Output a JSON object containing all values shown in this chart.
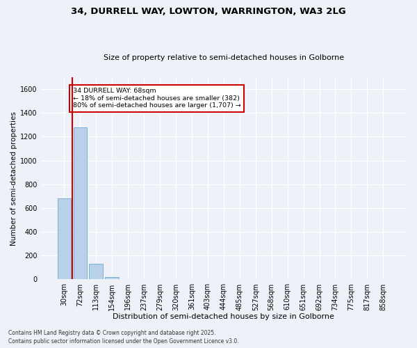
{
  "title1": "34, DURRELL WAY, LOWTON, WARRINGTON, WA3 2LG",
  "title2": "Size of property relative to semi-detached houses in Golborne",
  "xlabel": "Distribution of semi-detached houses by size in Golborne",
  "ylabel": "Number of semi-detached properties",
  "categories": [
    "30sqm",
    "72sqm",
    "113sqm",
    "154sqm",
    "196sqm",
    "237sqm",
    "279sqm",
    "320sqm",
    "361sqm",
    "403sqm",
    "444sqm",
    "485sqm",
    "527sqm",
    "568sqm",
    "610sqm",
    "651sqm",
    "692sqm",
    "734sqm",
    "775sqm",
    "817sqm",
    "858sqm"
  ],
  "values": [
    680,
    1280,
    130,
    20,
    0,
    0,
    0,
    0,
    0,
    0,
    0,
    0,
    0,
    0,
    0,
    0,
    0,
    0,
    0,
    0,
    0
  ],
  "bar_color": "#b8d0e8",
  "bar_edge_color": "#6aaad4",
  "red_line_x": 0.5,
  "annotation_text": "34 DURRELL WAY: 68sqm\n← 18% of semi-detached houses are smaller (382)\n80% of semi-detached houses are larger (1,707) →",
  "annotation_box_color": "#ffffff",
  "annotation_box_edge": "#cc0000",
  "red_line_color": "#cc0000",
  "ylim": [
    0,
    1700
  ],
  "yticks": [
    0,
    200,
    400,
    600,
    800,
    1000,
    1200,
    1400,
    1600
  ],
  "footer1": "Contains HM Land Registry data © Crown copyright and database right 2025.",
  "footer2": "Contains public sector information licensed under the Open Government Licence v3.0.",
  "background_color": "#eef2f8",
  "plot_bg_color": "#eef2f8",
  "grid_color": "#ffffff",
  "title1_fontsize": 9.5,
  "title2_fontsize": 8,
  "xlabel_fontsize": 8,
  "ylabel_fontsize": 7.5,
  "tick_fontsize": 7,
  "footer_fontsize": 5.5
}
